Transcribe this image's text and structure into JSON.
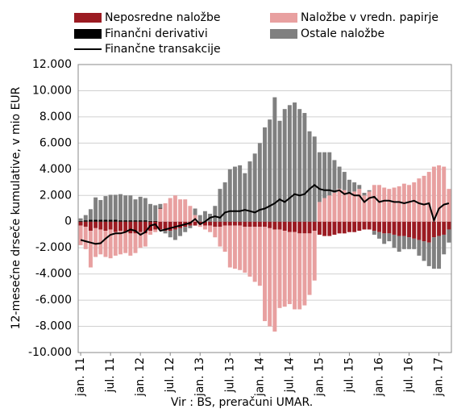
{
  "chart_data": {
    "type": "bar",
    "ylabel": "12-mesečne drseče kumulative, v mio EUR",
    "source": "Vir : BS, preračuni UMAR.",
    "categories": [
      "jan. 11",
      null,
      null,
      null,
      null,
      null,
      "jul. 11",
      null,
      null,
      null,
      null,
      null,
      "jan. 12",
      null,
      null,
      null,
      null,
      null,
      "jul. 12",
      null,
      null,
      null,
      null,
      null,
      "jan. 13",
      null,
      null,
      null,
      null,
      null,
      "jul. 13",
      null,
      null,
      null,
      null,
      null,
      "jan. 14",
      null,
      null,
      null,
      null,
      null,
      "jul. 14",
      null,
      null,
      null,
      null,
      null,
      "jan. 15",
      null,
      null,
      null,
      null,
      null,
      "jul. 15",
      null,
      null,
      null,
      null,
      null,
      "jan. 16",
      null,
      null,
      null,
      null,
      null,
      "jul. 16",
      null,
      null,
      null,
      null,
      null,
      "jan. 17",
      null,
      null
    ],
    "ylim": [
      -10000,
      12000
    ],
    "yticks": [
      {
        "value": -10000,
        "label": "-10.000"
      },
      {
        "value": -8000,
        "label": "-8.000"
      },
      {
        "value": -6000,
        "label": "-6.000"
      },
      {
        "value": -4000,
        "label": "-4.000"
      },
      {
        "value": -2000,
        "label": "-2.000"
      },
      0,
      {
        "value": 2000,
        "label": "2.000"
      },
      {
        "value": 4000,
        "label": "4.000"
      },
      {
        "value": 6000,
        "label": "6.000"
      },
      {
        "value": 8000,
        "label": "8.000"
      },
      {
        "value": 10000,
        "label": "10.000"
      },
      {
        "value": 12000,
        "label": "12.000"
      }
    ],
    "grid": true,
    "stacked": true,
    "series": [
      {
        "name": "Neposredne naložbe",
        "color": "#9b1b22",
        "type": "bar",
        "values": [
          -300,
          -400,
          -700,
          -500,
          -600,
          -700,
          -600,
          -800,
          -700,
          -800,
          -900,
          -900,
          -800,
          -900,
          -700,
          -600,
          -600,
          -700,
          -700,
          -600,
          -500,
          -400,
          -300,
          -300,
          -200,
          -300,
          -300,
          -400,
          -400,
          -300,
          -300,
          -300,
          -300,
          -400,
          -400,
          -400,
          -400,
          -400,
          -500,
          -600,
          -600,
          -700,
          -800,
          -800,
          -900,
          -900,
          -900,
          -700,
          -1000,
          -1100,
          -1100,
          -1000,
          -900,
          -900,
          -800,
          -800,
          -700,
          -600,
          -600,
          -700,
          -800,
          -900,
          -900,
          -1000,
          -1100,
          -1100,
          -1200,
          -1300,
          -1400,
          -1500,
          -1600,
          -1200,
          -1100,
          -1000,
          -600
        ]
      },
      {
        "name": "Naložbe v vredn. papirje",
        "color": "#e8a0a0",
        "type": "bar",
        "values": [
          -1500,
          -1700,
          -2800,
          -2200,
          -1900,
          -2000,
          -2200,
          -1800,
          -1800,
          -1600,
          -1700,
          -1500,
          -1200,
          -1000,
          -300,
          -200,
          1000,
          1400,
          1800,
          2000,
          1700,
          1700,
          1200,
          500,
          -200,
          -300,
          -500,
          -800,
          -1500,
          -2000,
          -3200,
          -3300,
          -3400,
          -3500,
          -3800,
          -4200,
          -4500,
          -7200,
          -7500,
          -7800,
          -6000,
          -5800,
          -5500,
          -5900,
          -5800,
          -5500,
          -4700,
          -3800,
          1500,
          1800,
          2000,
          2200,
          2500,
          2400,
          2200,
          2300,
          2500,
          2000,
          2300,
          2800,
          2800,
          2600,
          2500,
          2600,
          2700,
          2900,
          2800,
          3000,
          3300,
          3500,
          3800,
          4200,
          4300,
          4200,
          2500
        ]
      },
      {
        "name": "Finančni derivativi",
        "color": "#000000",
        "type": "bar",
        "values": [
          50,
          100,
          150,
          150,
          150,
          150,
          150,
          150,
          100,
          100,
          100,
          100,
          100,
          100,
          50,
          50,
          50,
          0,
          0,
          0,
          0,
          0,
          0,
          0,
          0,
          0,
          0,
          0,
          0,
          0,
          0,
          0,
          0,
          0,
          0,
          0,
          0,
          0,
          0,
          0,
          0,
          0,
          0,
          0,
          0,
          0,
          0,
          0,
          0,
          0,
          0,
          0,
          0,
          0,
          0,
          0,
          0,
          0,
          0,
          0,
          0,
          0,
          0,
          0,
          0,
          0,
          0,
          0,
          0,
          0,
          0,
          0,
          0,
          0,
          0
        ]
      },
      {
        "name": "Ostale naložbe",
        "color": "#808080",
        "type": "bar",
        "values": [
          200,
          400,
          800,
          1700,
          1500,
          1800,
          1900,
          1900,
          2000,
          1900,
          1900,
          1600,
          1800,
          1700,
          1300,
          1200,
          300,
          -200,
          -500,
          -800,
          -600,
          -400,
          -200,
          500,
          500,
          800,
          600,
          1200,
          2500,
          3000,
          4000,
          4200,
          4300,
          3700,
          4600,
          5200,
          6000,
          7200,
          7800,
          9500,
          7700,
          8600,
          8900,
          9100,
          8600,
          8300,
          6900,
          6500,
          3800,
          3500,
          3300,
          2500,
          1700,
          1400,
          1000,
          700,
          300,
          200,
          100,
          -300,
          -500,
          -800,
          -600,
          -1000,
          -1200,
          -1000,
          -900,
          -800,
          -1200,
          -1500,
          -1800,
          -2400,
          -2500,
          -1500,
          -1000
        ]
      },
      {
        "name": "Finančne transakcije",
        "color": "#000000",
        "type": "line",
        "values": [
          -1400,
          -1500,
          -1600,
          -1700,
          -1650,
          -1300,
          -1000,
          -900,
          -900,
          -800,
          -600,
          -700,
          -1000,
          -800,
          -300,
          -200,
          -700,
          -600,
          -500,
          -400,
          -300,
          -200,
          -100,
          200,
          -200,
          0,
          300,
          400,
          300,
          700,
          800,
          800,
          800,
          900,
          800,
          700,
          900,
          1000,
          1200,
          1400,
          1700,
          1500,
          1800,
          2100,
          2000,
          2100,
          2500,
          2800,
          2500,
          2400,
          2400,
          2300,
          2400,
          2100,
          2200,
          2000,
          2000,
          1500,
          1800,
          1900,
          1500,
          1600,
          1600,
          1500,
          1500,
          1400,
          1500,
          1600,
          1400,
          1300,
          1400,
          100,
          1000,
          1300,
          1400
        ]
      }
    ]
  }
}
